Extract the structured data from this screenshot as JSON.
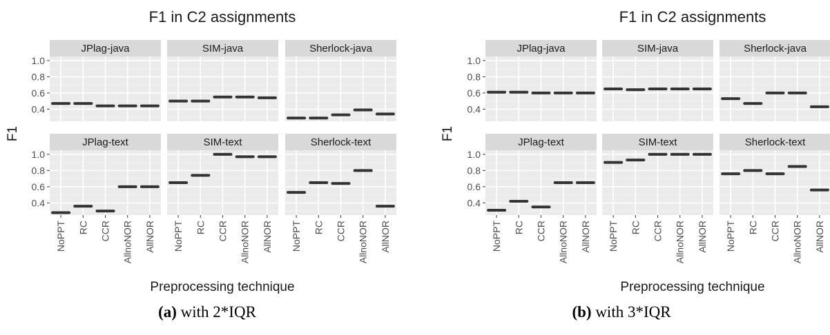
{
  "chart_data": [
    {
      "type": "scatter",
      "title": "F1 in C2 assignments",
      "xlabel": "Preprocessing technique",
      "ylabel": "F1",
      "categories": [
        "NoPPT",
        "RC",
        "CCR",
        "AllnoNOR",
        "AllNOR"
      ],
      "y_ticks": [
        "0.4",
        "0.6",
        "0.8",
        "1.0"
      ],
      "ylim": [
        0.25,
        1.05
      ],
      "grid": true,
      "facets": [
        {
          "name": "JPlag-java",
          "values": [
            0.47,
            0.47,
            0.44,
            0.44,
            0.44
          ]
        },
        {
          "name": "SIM-java",
          "values": [
            0.5,
            0.5,
            0.55,
            0.55,
            0.54
          ]
        },
        {
          "name": "Sherlock-java",
          "values": [
            0.29,
            0.29,
            0.33,
            0.39,
            0.34
          ]
        },
        {
          "name": "JPlag-text",
          "values": [
            0.28,
            0.36,
            0.3,
            0.6,
            0.6
          ]
        },
        {
          "name": "SIM-text",
          "values": [
            0.65,
            0.74,
            1.0,
            0.97,
            0.97
          ]
        },
        {
          "name": "Sherlock-text",
          "values": [
            0.53,
            0.65,
            0.64,
            0.8,
            0.36
          ]
        }
      ]
    },
    {
      "type": "scatter",
      "title": "F1 in C2 assignments",
      "xlabel": "Preprocessing technique",
      "ylabel": "F1",
      "categories": [
        "NoPPT",
        "RC",
        "CCR",
        "AllnoNOR",
        "AllNOR"
      ],
      "y_ticks": [
        "0.4",
        "0.6",
        "0.8",
        "1.0"
      ],
      "ylim": [
        0.25,
        1.05
      ],
      "grid": true,
      "facets": [
        {
          "name": "JPlag-java",
          "values": [
            0.61,
            0.61,
            0.6,
            0.6,
            0.6
          ]
        },
        {
          "name": "SIM-java",
          "values": [
            0.65,
            0.64,
            0.65,
            0.65,
            0.65
          ]
        },
        {
          "name": "Sherlock-java",
          "values": [
            0.53,
            0.47,
            0.6,
            0.6,
            0.43
          ]
        },
        {
          "name": "JPlag-text",
          "values": [
            0.31,
            0.42,
            0.35,
            0.65,
            0.65
          ]
        },
        {
          "name": "SIM-text",
          "values": [
            0.9,
            0.93,
            1.0,
            1.0,
            1.0
          ]
        },
        {
          "name": "Sherlock-text",
          "values": [
            0.76,
            0.8,
            0.76,
            0.85,
            0.56
          ]
        }
      ]
    }
  ],
  "captions": [
    {
      "label": "(a)",
      "text": " with 2*IQR"
    },
    {
      "label": "(b)",
      "text": " with 3*IQR"
    }
  ]
}
